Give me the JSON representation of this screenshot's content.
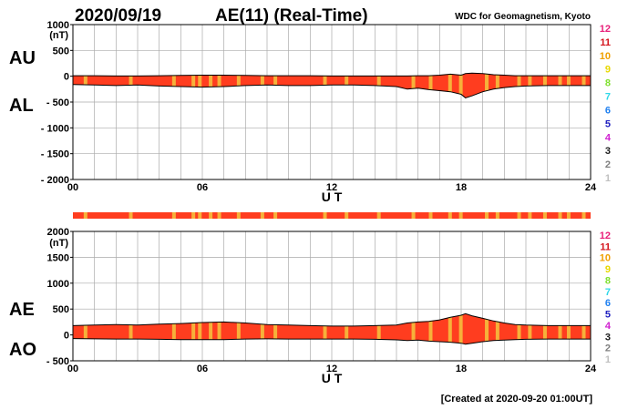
{
  "header": {
    "date": "2020/09/19",
    "title": "AE(11) (Real-Time)",
    "source": "WDC for Geomagnetism, Kyoto"
  },
  "footer": {
    "created": "[Created at 2020-09-20 01:00UT]"
  },
  "legend": {
    "levels": [
      "12",
      "11",
      "10",
      "9",
      "8",
      "7",
      "6",
      "5",
      "4",
      "3",
      "2",
      "1"
    ],
    "colors": [
      "#e8207a",
      "#d4141c",
      "#f0a000",
      "#e8d800",
      "#80e030",
      "#30d8e8",
      "#2080f0",
      "#2020c0",
      "#d020d0",
      "#202020",
      "#808080",
      "#c0c0c0"
    ]
  },
  "colors": {
    "fill": "#ff3d1f",
    "band": "#f6b13a",
    "grid": "#aaaaaa",
    "line": "#000000"
  },
  "chart_data": [
    {
      "type": "area",
      "panel": "AU/AL",
      "unit": "(nT)",
      "labels": [
        "AU",
        "AL"
      ],
      "xlabel": "U T",
      "xlim": [
        0,
        24
      ],
      "x_ticks": [
        "00",
        "06",
        "12",
        "18",
        "24"
      ],
      "ylim": [
        -2000,
        1000
      ],
      "y_ticks": [
        "1000",
        "500",
        "0",
        "- 500",
        "- 1000",
        "- 1500",
        "- 2000"
      ],
      "x": [
        0,
        1,
        2,
        3,
        4,
        5,
        6,
        7,
        8,
        9,
        10,
        11,
        12,
        13,
        14,
        15,
        15.5,
        16,
        16.5,
        17,
        17.5,
        18,
        18.2,
        18.5,
        19,
        19.5,
        20,
        20.5,
        21,
        22,
        23,
        24
      ],
      "series": [
        {
          "name": "AU",
          "values": [
            10,
            10,
            5,
            5,
            10,
            15,
            20,
            20,
            15,
            10,
            10,
            10,
            5,
            5,
            5,
            5,
            5,
            10,
            10,
            20,
            40,
            20,
            50,
            60,
            50,
            30,
            20,
            10,
            10,
            10,
            10,
            10
          ]
        },
        {
          "name": "AL",
          "values": [
            -160,
            -170,
            -180,
            -170,
            -190,
            -200,
            -210,
            -200,
            -180,
            -170,
            -180,
            -180,
            -170,
            -170,
            -180,
            -200,
            -250,
            -230,
            -260,
            -280,
            -300,
            -350,
            -420,
            -380,
            -300,
            -250,
            -220,
            -200,
            -190,
            -180,
            -180,
            -180
          ]
        }
      ]
    },
    {
      "type": "area",
      "panel": "AE/AO",
      "unit": "(nT)",
      "labels": [
        "AE",
        "AO"
      ],
      "xlabel": "U T",
      "xlim": [
        0,
        24
      ],
      "x_ticks": [
        "00",
        "06",
        "12",
        "18",
        "24"
      ],
      "ylim": [
        -500,
        2000
      ],
      "y_ticks": [
        "2000",
        "1500",
        "1000",
        "500",
        "0",
        "- 500"
      ],
      "x": [
        0,
        1,
        2,
        3,
        4,
        5,
        6,
        7,
        8,
        9,
        10,
        11,
        12,
        13,
        14,
        15,
        15.5,
        16,
        16.5,
        17,
        17.5,
        18,
        18.2,
        18.5,
        19,
        19.5,
        20,
        20.5,
        21,
        22,
        23,
        24
      ],
      "series": [
        {
          "name": "AE",
          "values": [
            180,
            190,
            200,
            190,
            210,
            220,
            240,
            250,
            230,
            200,
            190,
            180,
            170,
            170,
            180,
            190,
            230,
            250,
            260,
            290,
            340,
            380,
            410,
            370,
            320,
            270,
            230,
            200,
            190,
            180,
            180,
            180
          ]
        },
        {
          "name": "AO",
          "values": [
            -70,
            -75,
            -80,
            -80,
            -85,
            -90,
            -90,
            -90,
            -80,
            -75,
            -80,
            -80,
            -80,
            -80,
            -85,
            -95,
            -110,
            -100,
            -120,
            -130,
            -140,
            -160,
            -180,
            -160,
            -130,
            -110,
            -100,
            -90,
            -85,
            -80,
            -80,
            -80
          ]
        }
      ]
    }
  ]
}
